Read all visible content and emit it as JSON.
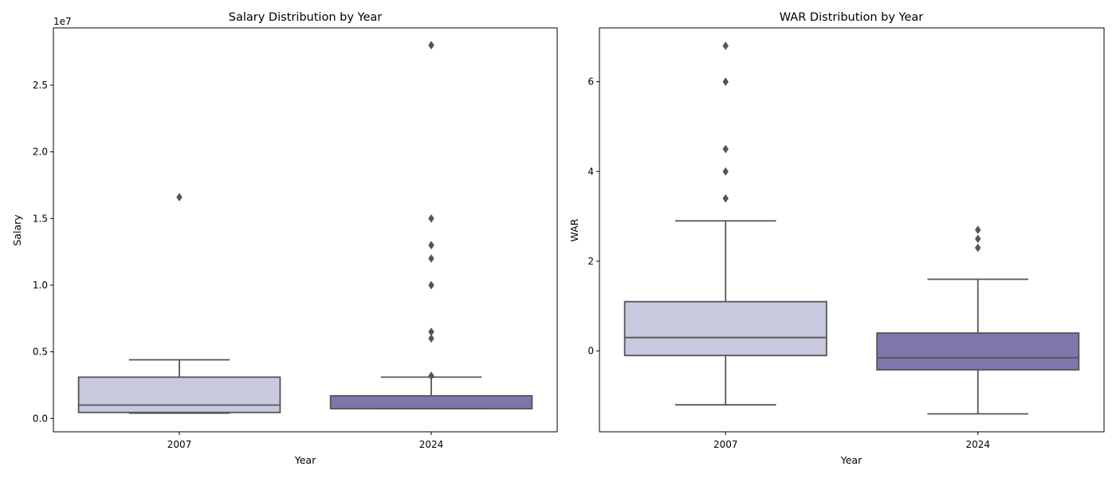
{
  "chart_data": [
    {
      "type": "boxplot",
      "title": "Salary Distribution by Year",
      "xlabel": "Year",
      "ylabel": "Salary",
      "offset_text": "1e7",
      "categories": [
        "2007",
        "2024"
      ],
      "ylim": [
        -1000000,
        29300000
      ],
      "yticks": [
        0,
        5000000,
        10000000,
        15000000,
        20000000,
        25000000
      ],
      "yticklabels": [
        "0.0",
        "0.5",
        "1.0",
        "1.5",
        "2.0",
        "2.5"
      ],
      "boxes": [
        {
          "category": "2007",
          "color": "#c8c8de",
          "whisker_low": 400000,
          "q1": 450000,
          "median": 1000000,
          "q3": 3100000,
          "whisker_high": 4400000,
          "outliers": [
            16600000
          ]
        },
        {
          "category": "2024",
          "color": "#8076ac",
          "whisker_low": 740000,
          "q1": 740000,
          "median": 740000,
          "q3": 1700000,
          "whisker_high": 3100000,
          "outliers": [
            3200000,
            6000000,
            6500000,
            10000000,
            12000000,
            13000000,
            15000000,
            28000000
          ]
        }
      ]
    },
    {
      "type": "boxplot",
      "title": "WAR Distribution by Year",
      "xlabel": "Year",
      "ylabel": "WAR",
      "categories": [
        "2007",
        "2024"
      ],
      "ylim": [
        -1.8,
        7.2
      ],
      "yticks": [
        0,
        2,
        4,
        6
      ],
      "yticklabels": [
        "0",
        "2",
        "4",
        "6"
      ],
      "boxes": [
        {
          "category": "2007",
          "color": "#c8c8de",
          "whisker_low": -1.2,
          "q1": -0.1,
          "median": 0.3,
          "q3": 1.1,
          "whisker_high": 2.9,
          "outliers": [
            3.4,
            4.0,
            4.5,
            6.0,
            6.8
          ]
        },
        {
          "category": "2024",
          "color": "#8076ac",
          "whisker_low": -1.4,
          "q1": -0.42,
          "median": -0.15,
          "q3": 0.4,
          "whisker_high": 1.6,
          "outliers": [
            2.3,
            2.5,
            2.7
          ]
        }
      ]
    }
  ]
}
